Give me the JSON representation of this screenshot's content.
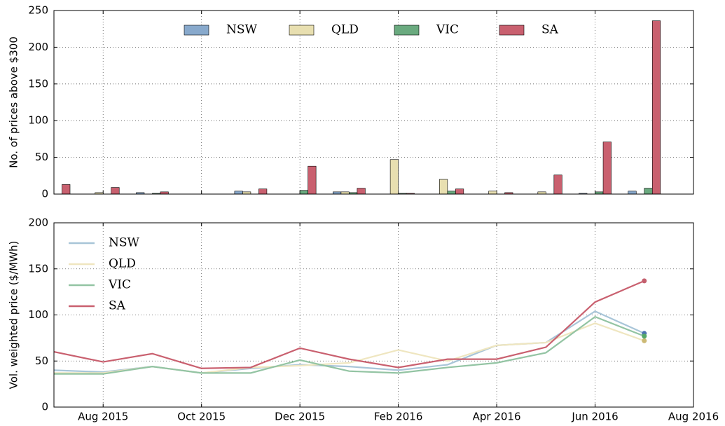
{
  "chart_data": [
    {
      "type": "bar",
      "y_label": "No. of prices above $300",
      "x": [
        "2015-07",
        "2015-08",
        "2015-09",
        "2015-10",
        "2015-11",
        "2015-12",
        "2016-01",
        "2016-02",
        "2016-03",
        "2016-04",
        "2016-05",
        "2016-06",
        "2016-07"
      ],
      "series": [
        {
          "name": "NSW",
          "color": "#88a9cc",
          "values": [
            0,
            0,
            2,
            0,
            4,
            0,
            3,
            0,
            0,
            0,
            0,
            1,
            4
          ]
        },
        {
          "name": "QLD",
          "color": "#e8dfb0",
          "values": [
            0,
            2,
            0,
            0,
            3,
            0,
            3,
            47,
            20,
            4,
            3,
            0,
            0
          ]
        },
        {
          "name": "VIC",
          "color": "#6aaa7f",
          "values": [
            0,
            0,
            1,
            0,
            0,
            5,
            2,
            1,
            4,
            0,
            0,
            3,
            8
          ]
        },
        {
          "name": "SA",
          "color": "#c9606f",
          "values": [
            13,
            9,
            3,
            0,
            7,
            38,
            8,
            1,
            7,
            2,
            26,
            71,
            236
          ]
        }
      ],
      "xlim": [
        "2015-07",
        "2016-08"
      ],
      "xticks": [
        "2015-08",
        "2015-10",
        "2015-12",
        "2016-02",
        "2016-04",
        "2016-06",
        "2016-08"
      ],
      "ylim": [
        0,
        250
      ],
      "yticks": [
        0,
        50,
        100,
        150,
        200,
        250
      ],
      "grid": true,
      "legend": "upper center"
    },
    {
      "type": "line",
      "y_label": "Vol. weighted price ($/MWh)",
      "x": [
        "2015-07",
        "2015-08",
        "2015-09",
        "2015-10",
        "2015-11",
        "2015-12",
        "2016-01",
        "2016-02",
        "2016-03",
        "2016-04",
        "2016-05",
        "2016-06",
        "2016-07"
      ],
      "series": [
        {
          "name": "NSW",
          "color": "#a8c5d8",
          "marker_color": "#4c72b0",
          "values": [
            40,
            38,
            44,
            37,
            42,
            46,
            44,
            40,
            46,
            67,
            70,
            104,
            80
          ]
        },
        {
          "name": "QLD",
          "color": "#efe6c0",
          "marker_color": "#ccb974",
          "values": [
            37,
            37,
            44,
            37,
            43,
            45,
            48,
            62,
            50,
            67,
            70,
            91,
            72
          ]
        },
        {
          "name": "VIC",
          "color": "#93c4a3",
          "marker_color": "#55a868",
          "values": [
            36,
            36,
            44,
            37,
            37,
            51,
            39,
            37,
            43,
            48,
            59,
            98,
            77
          ]
        },
        {
          "name": "SA",
          "color": "#c9606f",
          "marker_color": "#c4606e",
          "values": [
            60,
            49,
            58,
            42,
            43,
            64,
            52,
            43,
            52,
            52,
            65,
            114,
            137
          ]
        }
      ],
      "xlim": [
        "2015-07",
        "2016-08"
      ],
      "xticks": [
        {
          "value": "2015-08",
          "label": "Aug 2015"
        },
        {
          "value": "2015-10",
          "label": "Oct 2015"
        },
        {
          "value": "2015-12",
          "label": "Dec 2015"
        },
        {
          "value": "2016-02",
          "label": "Feb 2016"
        },
        {
          "value": "2016-04",
          "label": "Apr 2016"
        },
        {
          "value": "2016-06",
          "label": "Jun 2016"
        },
        {
          "value": "2016-08",
          "label": "Aug 2016"
        }
      ],
      "ylim": [
        0,
        200
      ],
      "yticks": [
        0,
        50,
        100,
        150,
        200
      ],
      "grid": true,
      "legend": "upper left",
      "end_markers": true
    }
  ]
}
